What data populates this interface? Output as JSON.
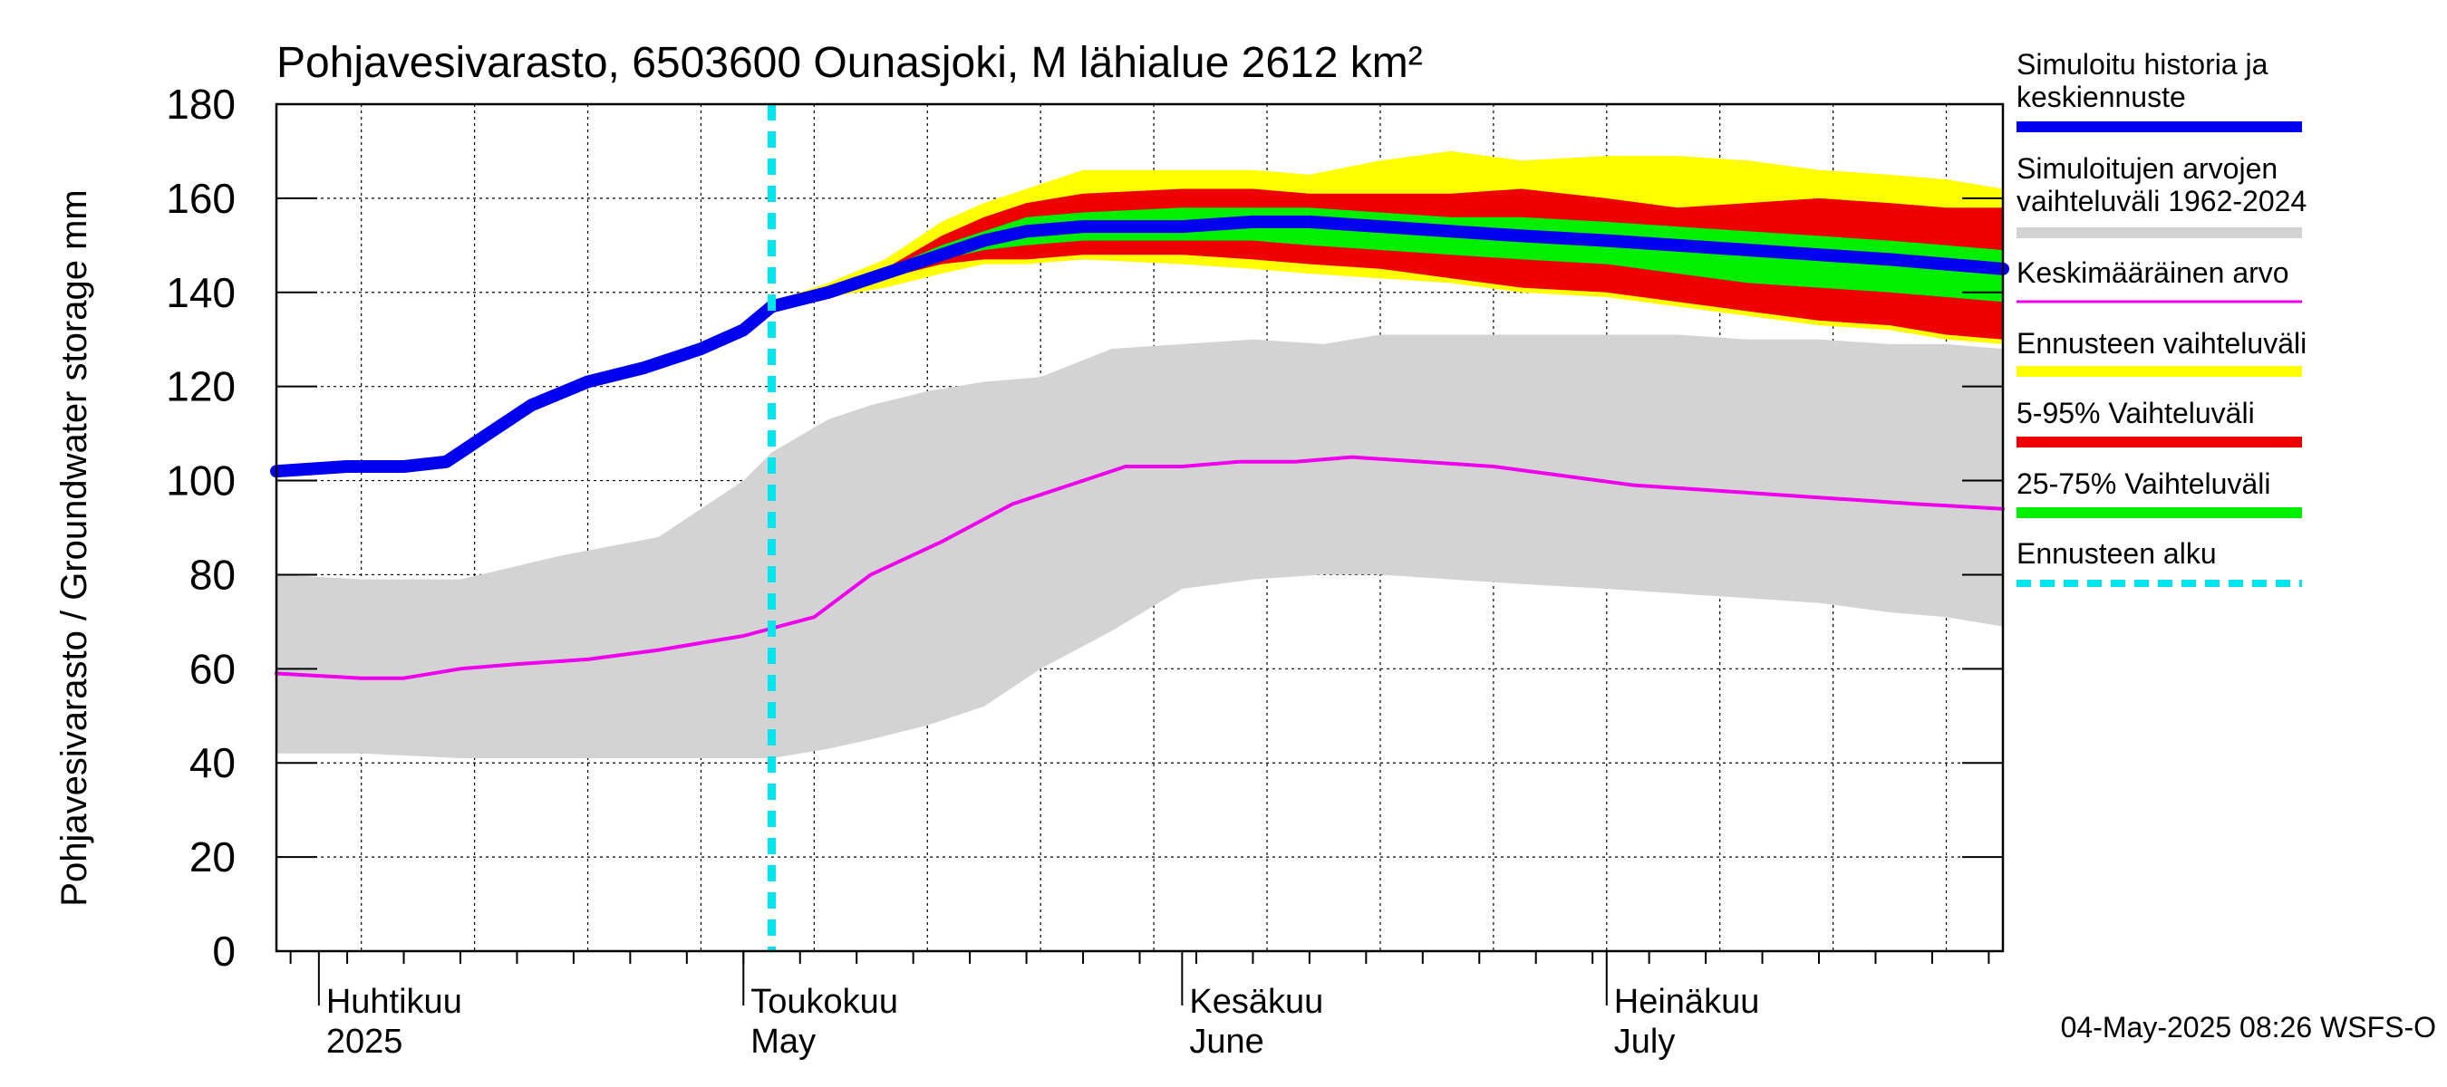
{
  "chart_data": {
    "type": "area",
    "title": "Pohjavesivarasto, 6503600 Ounasjoki, M lähialue 2612 km²",
    "ylabel": "Pohjavesivarasto / Groundwater storage   mm",
    "ylim": [
      0,
      180
    ],
    "yticks": [
      "0",
      "20",
      "40",
      "60",
      "80",
      "100",
      "120",
      "140",
      "160",
      "180"
    ],
    "xlim": [
      "2025-03-29",
      "2025-07-29"
    ],
    "month_labels": [
      {
        "date": "2025-04-01",
        "fi": "Huhtikuu",
        "en": "2025"
      },
      {
        "date": "2025-05-01",
        "fi": "Toukokuu",
        "en": "May"
      },
      {
        "date": "2025-06-01",
        "fi": "Kesäkuu",
        "en": "June"
      },
      {
        "date": "2025-07-01",
        "fi": "Heinäkuu",
        "en": "July"
      }
    ],
    "grid": true,
    "legend_position": "right",
    "forecast_start": "2025-05-03",
    "timestamp": "04-May-2025 08:26 WSFS-O",
    "legend": [
      {
        "label": "Simuloitu historia ja keskiennuste",
        "color": "#0000ee",
        "style": "thick"
      },
      {
        "label": "Simuloitujen arvojen vaihteluväli 1962-2024",
        "color": "#d3d3d3",
        "style": "band"
      },
      {
        "label": "Keskimääräinen arvo",
        "color": "#ee00ee",
        "style": "line"
      },
      {
        "label": "Ennusteen vaihteluväli",
        "color": "#ffff00",
        "style": "band"
      },
      {
        "label": "5-95% Vaihteluväli",
        "color": "#ee0000",
        "style": "band"
      },
      {
        "label": "25-75% Vaihteluväli",
        "color": "#00ee00",
        "style": "band"
      },
      {
        "label": "Ennusteen alku",
        "color": "#00e5ee",
        "style": "dashed"
      }
    ],
    "series": [
      {
        "name": "Simuloitujen arvojen vaihteluväli 1962-2024",
        "color": "#d3d3d3",
        "kind": "band",
        "x": [
          "2025-03-29",
          "2025-04-04",
          "2025-04-11",
          "2025-04-18",
          "2025-04-25",
          "2025-05-01",
          "2025-05-03",
          "2025-05-07",
          "2025-05-10",
          "2025-05-14",
          "2025-05-18",
          "2025-05-22",
          "2025-05-27",
          "2025-06-01",
          "2025-06-06",
          "2025-06-11",
          "2025-06-15",
          "2025-06-20",
          "2025-06-25",
          "2025-07-01",
          "2025-07-06",
          "2025-07-11",
          "2025-07-16",
          "2025-07-21",
          "2025-07-25",
          "2025-07-29"
        ],
        "low": [
          42,
          42,
          41,
          41,
          41,
          41,
          41,
          43,
          45,
          48,
          52,
          60,
          68,
          77,
          79,
          80,
          80,
          79,
          78,
          77,
          76,
          75,
          74,
          72,
          71,
          69
        ],
        "high": [
          80,
          79,
          79,
          84,
          88,
          100,
          106,
          113,
          116,
          119,
          121,
          122,
          128,
          129,
          130,
          129,
          131,
          131,
          131,
          131,
          131,
          130,
          130,
          129,
          129,
          128
        ]
      },
      {
        "name": "Ennusteen vaihteluväli",
        "color": "#ffff00",
        "kind": "band",
        "x": [
          "2025-05-03",
          "2025-05-07",
          "2025-05-11",
          "2025-05-15",
          "2025-05-18",
          "2025-05-21",
          "2025-05-25",
          "2025-06-01",
          "2025-06-06",
          "2025-06-10",
          "2025-06-15",
          "2025-06-20",
          "2025-06-25",
          "2025-07-01",
          "2025-07-06",
          "2025-07-11",
          "2025-07-16",
          "2025-07-21",
          "2025-07-25",
          "2025-07-29"
        ],
        "low": [
          137,
          139,
          141,
          144,
          146,
          146,
          147,
          146,
          145,
          144,
          143,
          142,
          140,
          139,
          137,
          135,
          133,
          132,
          130,
          129
        ],
        "high": [
          138,
          142,
          147,
          155,
          159,
          162,
          166,
          166,
          166,
          165,
          168,
          170,
          168,
          169,
          169,
          168,
          166,
          165,
          164,
          162
        ]
      },
      {
        "name": "5-95% Vaihteluväli",
        "color": "#ee0000",
        "kind": "band",
        "x": [
          "2025-05-03",
          "2025-05-07",
          "2025-05-11",
          "2025-05-15",
          "2025-05-18",
          "2025-05-21",
          "2025-05-25",
          "2025-06-01",
          "2025-06-06",
          "2025-06-10",
          "2025-06-15",
          "2025-06-20",
          "2025-06-25",
          "2025-07-01",
          "2025-07-06",
          "2025-07-11",
          "2025-07-16",
          "2025-07-21",
          "2025-07-25",
          "2025-07-29"
        ],
        "low": [
          137,
          140,
          143,
          146,
          147,
          147,
          148,
          148,
          147,
          146,
          145,
          143,
          141,
          140,
          138,
          136,
          134,
          133,
          131,
          130
        ],
        "high": [
          138,
          141,
          145,
          152,
          156,
          159,
          161,
          162,
          162,
          161,
          161,
          161,
          162,
          160,
          158,
          159,
          160,
          159,
          158,
          158
        ]
      },
      {
        "name": "25-75% Vaihteluväli",
        "color": "#00ee00",
        "kind": "band",
        "x": [
          "2025-05-03",
          "2025-05-07",
          "2025-05-11",
          "2025-05-15",
          "2025-05-18",
          "2025-05-21",
          "2025-05-25",
          "2025-06-01",
          "2025-06-06",
          "2025-06-10",
          "2025-06-15",
          "2025-06-20",
          "2025-06-25",
          "2025-07-01",
          "2025-07-06",
          "2025-07-11",
          "2025-07-16",
          "2025-07-21",
          "2025-07-25",
          "2025-07-29"
        ],
        "low": [
          137,
          140,
          144,
          147,
          149,
          150,
          151,
          151,
          151,
          150,
          149,
          148,
          147,
          146,
          144,
          142,
          141,
          140,
          139,
          138
        ],
        "high": [
          138,
          141,
          145,
          150,
          153,
          156,
          157,
          158,
          158,
          158,
          157,
          156,
          156,
          155,
          154,
          153,
          152,
          151,
          150,
          149
        ]
      },
      {
        "name": "Keskimääräinen arvo",
        "color": "#ee00ee",
        "kind": "line",
        "x": [
          "2025-03-29",
          "2025-04-04",
          "2025-04-07",
          "2025-04-11",
          "2025-04-15",
          "2025-04-20",
          "2025-04-25",
          "2025-05-01",
          "2025-05-06",
          "2025-05-10",
          "2025-05-15",
          "2025-05-20",
          "2025-05-25",
          "2025-05-28",
          "2025-06-01",
          "2025-06-05",
          "2025-06-09",
          "2025-06-13",
          "2025-06-18",
          "2025-06-23",
          "2025-06-28",
          "2025-07-03",
          "2025-07-08",
          "2025-07-13",
          "2025-07-18",
          "2025-07-23",
          "2025-07-29"
        ],
        "values": [
          59,
          58,
          58,
          60,
          61,
          62,
          64,
          67,
          71,
          80,
          87,
          95,
          100,
          103,
          103,
          104,
          104,
          105,
          104,
          103,
          101,
          99,
          98,
          97,
          96,
          95,
          94
        ]
      },
      {
        "name": "Simuloitu historia ja keskiennuste",
        "color": "#0000ee",
        "kind": "line",
        "x": [
          "2025-03-29",
          "2025-04-03",
          "2025-04-07",
          "2025-04-10",
          "2025-04-13",
          "2025-04-16",
          "2025-04-20",
          "2025-04-24",
          "2025-04-28",
          "2025-05-01",
          "2025-05-03",
          "2025-05-07",
          "2025-05-11",
          "2025-05-15",
          "2025-05-18",
          "2025-05-21",
          "2025-05-25",
          "2025-06-01",
          "2025-06-06",
          "2025-06-10",
          "2025-06-15",
          "2025-06-20",
          "2025-06-25",
          "2025-07-01",
          "2025-07-06",
          "2025-07-11",
          "2025-07-16",
          "2025-07-21",
          "2025-07-25",
          "2025-07-29"
        ],
        "values": [
          102,
          103,
          103,
          104,
          110,
          116,
          121,
          124,
          128,
          132,
          137,
          140,
          144,
          148,
          151,
          153,
          154,
          154,
          155,
          155,
          154,
          153,
          152,
          151,
          150,
          149,
          148,
          147,
          146,
          145
        ]
      }
    ]
  }
}
